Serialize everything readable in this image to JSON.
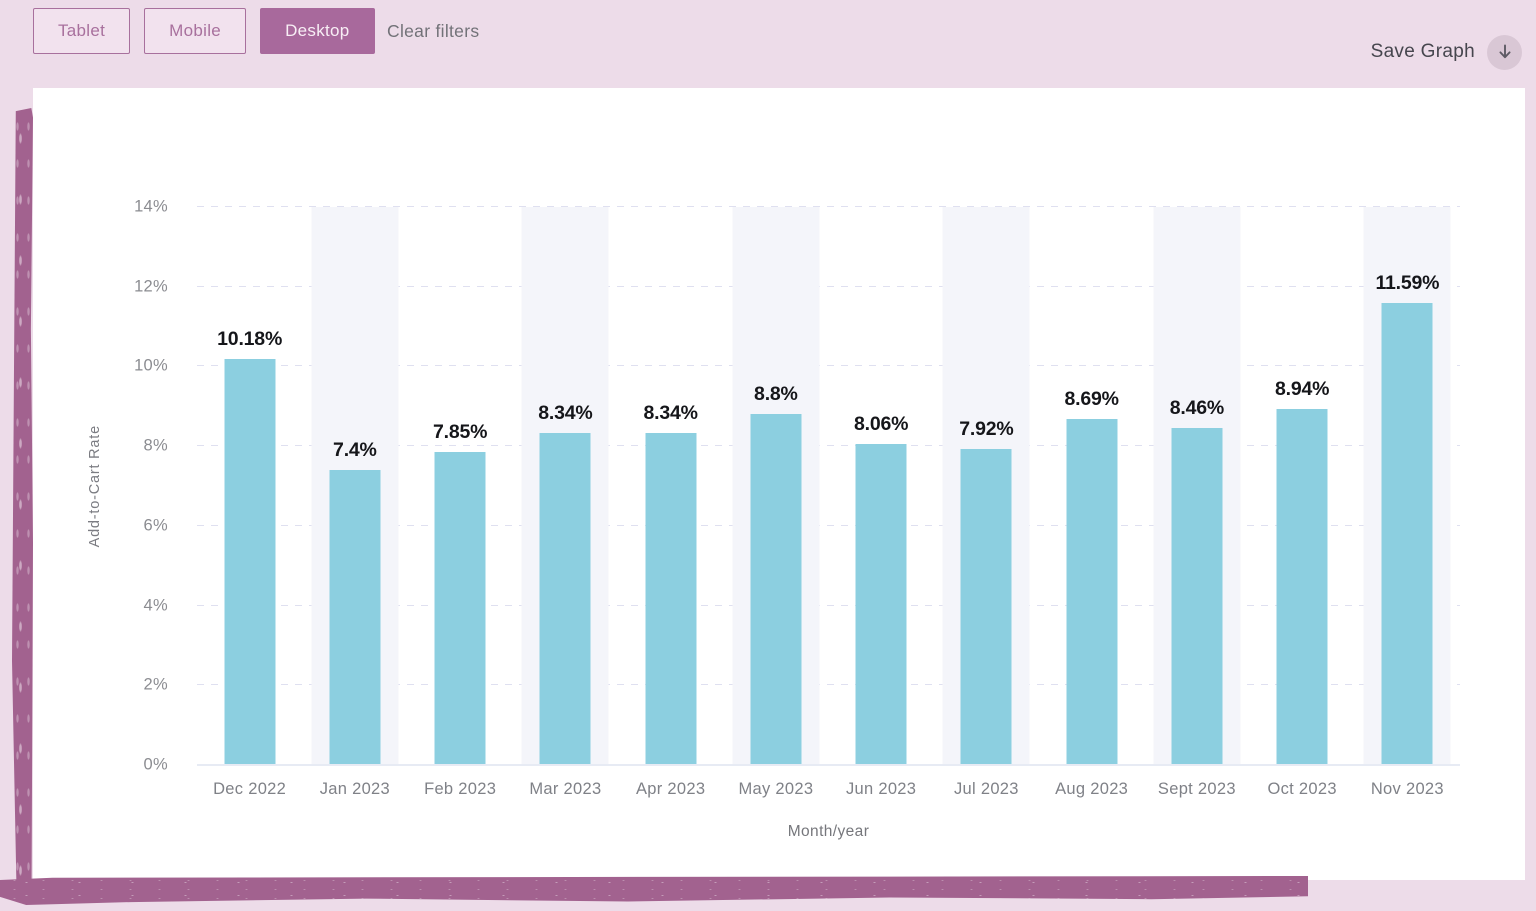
{
  "topbar": {
    "filter_buttons": [
      {
        "label": "Tablet",
        "active": false
      },
      {
        "label": "Mobile",
        "active": false
      },
      {
        "label": "Desktop",
        "active": true
      }
    ],
    "clear_filters_label": "Clear filters",
    "save_graph_label": "Save Graph",
    "save_icon": "download-arrow-icon"
  },
  "chart_data": {
    "type": "bar",
    "title": "",
    "xlabel": "Month/year",
    "ylabel": "Add-to-Cart Rate",
    "categories": [
      "Dec 2022",
      "Jan 2023",
      "Feb 2023",
      "Mar 2023",
      "Apr 2023",
      "May 2023",
      "Jun 2023",
      "Jul 2023",
      "Aug 2023",
      "Sept 2023",
      "Oct 2023",
      "Nov 2023"
    ],
    "values": [
      10.18,
      7.4,
      7.85,
      8.34,
      8.34,
      8.8,
      8.06,
      7.92,
      8.69,
      8.46,
      8.94,
      11.59
    ],
    "value_labels": [
      "10.18%",
      "7.4%",
      "7.85%",
      "8.34%",
      "8.34%",
      "8.8%",
      "8.06%",
      "7.92%",
      "8.69%",
      "8.46%",
      "8.94%",
      "11.59%"
    ],
    "y_ticks": [
      "0%",
      "2%",
      "4%",
      "6%",
      "8%",
      "10%",
      "12%",
      "14%"
    ],
    "ylim": [
      0,
      14
    ],
    "grid": "horizontal-dashed",
    "legend": "none",
    "striped_column_indexes": [
      1,
      3,
      5,
      7,
      9,
      11
    ]
  },
  "colors": {
    "page_bg": "#eddce9",
    "card_bg": "#ffffff",
    "accent_mauve": "#a8699c",
    "brush_stroke": "#a2628f",
    "bar_fill": "#8ccfe0",
    "column_stripe": "#f4f5fa",
    "grid_line": "#dfe0f0",
    "tick_text": "#8b8c91",
    "value_text": "#15161a"
  }
}
